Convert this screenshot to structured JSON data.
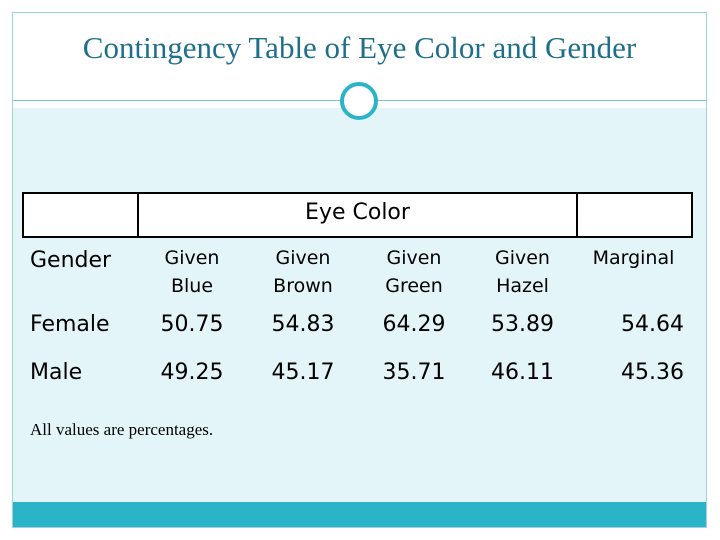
{
  "title": "Contingency Table of Eye Color and Gender",
  "table": {
    "group_header": "Eye Color",
    "columns": [
      "Gender",
      "Given Blue",
      "Given Brown",
      "Given Green",
      "Given Hazel",
      "Marginal"
    ],
    "rows": [
      [
        "Female",
        50.75,
        54.83,
        64.29,
        53.89,
        54.64
      ],
      [
        "Male",
        49.25,
        45.17,
        35.71,
        46.11,
        45.36
      ]
    ]
  },
  "note": "All values are percentages."
}
